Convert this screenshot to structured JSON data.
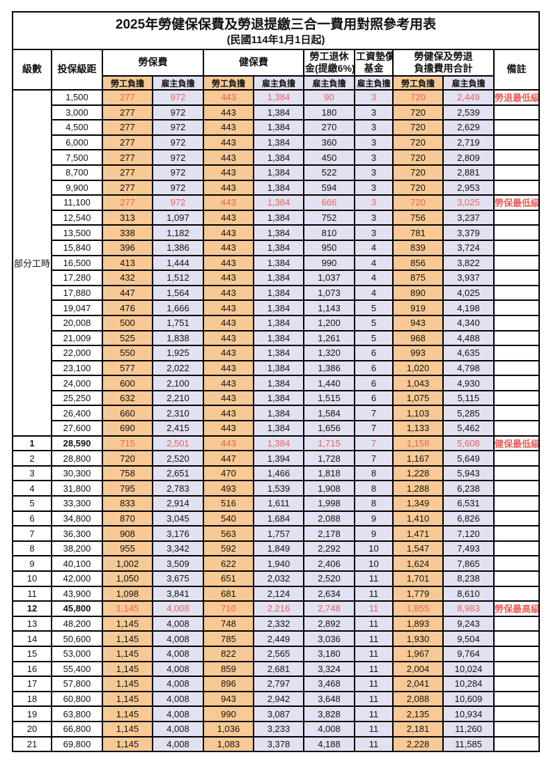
{
  "title": "2025年勞健保保費及勞退提繳三合一費用對照參考用表",
  "subtitle": "(民國114年1月1日起)",
  "colors": {
    "employee_bg": "#f8c995",
    "employer_bg": "#e2e1f1",
    "highlight_text": "#e9605a"
  },
  "table": {
    "headers": {
      "level": "級數",
      "bracket": "投保級距",
      "labor_ins": "勞保費",
      "health_ins": "健保費",
      "pension_line1": "勞工退休",
      "pension_line2": "金(提繳6%)",
      "fund_line1": "工資墊償",
      "fund_line2": "基金",
      "total_line1": "勞健保及勞退",
      "total_line2": "負擔費用合計",
      "remark": "備註",
      "employee": "勞工負擔",
      "employer": "雇主負擔"
    },
    "part_time_label": "部分工時",
    "part_time_rowspan": 23,
    "rows": [
      {
        "level": "",
        "bracket": "1,500",
        "li_emp": "277",
        "li_er": "972",
        "hi_emp": "443",
        "hi_er": "1,384",
        "pension": "90",
        "fund": "3",
        "tot_emp": "720",
        "tot_er": "2,449",
        "remark": "勞退最低級距",
        "hl": true,
        "big": false
      },
      {
        "level": "",
        "bracket": "3,000",
        "li_emp": "277",
        "li_er": "972",
        "hi_emp": "443",
        "hi_er": "1,384",
        "pension": "180",
        "fund": "3",
        "tot_emp": "720",
        "tot_er": "2,539",
        "remark": "",
        "hl": false,
        "big": false
      },
      {
        "level": "",
        "bracket": "4,500",
        "li_emp": "277",
        "li_er": "972",
        "hi_emp": "443",
        "hi_er": "1,384",
        "pension": "270",
        "fund": "3",
        "tot_emp": "720",
        "tot_er": "2,629",
        "remark": "",
        "hl": false,
        "big": false
      },
      {
        "level": "",
        "bracket": "6,000",
        "li_emp": "277",
        "li_er": "972",
        "hi_emp": "443",
        "hi_er": "1,384",
        "pension": "360",
        "fund": "3",
        "tot_emp": "720",
        "tot_er": "2,719",
        "remark": "",
        "hl": false,
        "big": false
      },
      {
        "level": "",
        "bracket": "7,500",
        "li_emp": "277",
        "li_er": "972",
        "hi_emp": "443",
        "hi_er": "1,384",
        "pension": "450",
        "fund": "3",
        "tot_emp": "720",
        "tot_er": "2,809",
        "remark": "",
        "hl": false,
        "big": false
      },
      {
        "level": "",
        "bracket": "8,700",
        "li_emp": "277",
        "li_er": "972",
        "hi_emp": "443",
        "hi_er": "1,384",
        "pension": "522",
        "fund": "3",
        "tot_emp": "720",
        "tot_er": "2,881",
        "remark": "",
        "hl": false,
        "big": false
      },
      {
        "level": "",
        "bracket": "9,900",
        "li_emp": "277",
        "li_er": "972",
        "hi_emp": "443",
        "hi_er": "1,384",
        "pension": "594",
        "fund": "3",
        "tot_emp": "720",
        "tot_er": "2,953",
        "remark": "",
        "hl": false,
        "big": false
      },
      {
        "level": "",
        "bracket": "11,100",
        "li_emp": "277",
        "li_er": "972",
        "hi_emp": "443",
        "hi_er": "1,384",
        "pension": "666",
        "fund": "3",
        "tot_emp": "720",
        "tot_er": "3,025",
        "remark": "勞保最低級距",
        "hl": true,
        "big": false
      },
      {
        "level": "",
        "bracket": "12,540",
        "li_emp": "313",
        "li_er": "1,097",
        "hi_emp": "443",
        "hi_er": "1,384",
        "pension": "752",
        "fund": "3",
        "tot_emp": "756",
        "tot_er": "3,237",
        "remark": "",
        "hl": false,
        "big": false
      },
      {
        "level": "",
        "bracket": "13,500",
        "li_emp": "338",
        "li_er": "1,182",
        "hi_emp": "443",
        "hi_er": "1,384",
        "pension": "810",
        "fund": "3",
        "tot_emp": "781",
        "tot_er": "3,379",
        "remark": "",
        "hl": false,
        "big": false
      },
      {
        "level": "",
        "bracket": "15,840",
        "li_emp": "396",
        "li_er": "1,386",
        "hi_emp": "443",
        "hi_er": "1,384",
        "pension": "950",
        "fund": "4",
        "tot_emp": "839",
        "tot_er": "3,724",
        "remark": "",
        "hl": false,
        "big": false
      },
      {
        "level": "",
        "bracket": "16,500",
        "li_emp": "413",
        "li_er": "1,444",
        "hi_emp": "443",
        "hi_er": "1,384",
        "pension": "990",
        "fund": "4",
        "tot_emp": "856",
        "tot_er": "3,822",
        "remark": "",
        "hl": false,
        "big": false
      },
      {
        "level": "",
        "bracket": "17,280",
        "li_emp": "432",
        "li_er": "1,512",
        "hi_emp": "443",
        "hi_er": "1,384",
        "pension": "1,037",
        "fund": "4",
        "tot_emp": "875",
        "tot_er": "3,937",
        "remark": "",
        "hl": false,
        "big": false
      },
      {
        "level": "",
        "bracket": "17,880",
        "li_emp": "447",
        "li_er": "1,564",
        "hi_emp": "443",
        "hi_er": "1,384",
        "pension": "1,073",
        "fund": "4",
        "tot_emp": "890",
        "tot_er": "4,025",
        "remark": "",
        "hl": false,
        "big": false
      },
      {
        "level": "",
        "bracket": "19,047",
        "li_emp": "476",
        "li_er": "1,666",
        "hi_emp": "443",
        "hi_er": "1,384",
        "pension": "1,143",
        "fund": "5",
        "tot_emp": "919",
        "tot_er": "4,198",
        "remark": "",
        "hl": false,
        "big": false
      },
      {
        "level": "",
        "bracket": "20,008",
        "li_emp": "500",
        "li_er": "1,751",
        "hi_emp": "443",
        "hi_er": "1,384",
        "pension": "1,200",
        "fund": "5",
        "tot_emp": "943",
        "tot_er": "4,340",
        "remark": "",
        "hl": false,
        "big": false
      },
      {
        "level": "",
        "bracket": "21,009",
        "li_emp": "525",
        "li_er": "1,838",
        "hi_emp": "443",
        "hi_er": "1,384",
        "pension": "1,261",
        "fund": "5",
        "tot_emp": "968",
        "tot_er": "4,488",
        "remark": "",
        "hl": false,
        "big": false
      },
      {
        "level": "",
        "bracket": "22,000",
        "li_emp": "550",
        "li_er": "1,925",
        "hi_emp": "443",
        "hi_er": "1,384",
        "pension": "1,320",
        "fund": "6",
        "tot_emp": "993",
        "tot_er": "4,635",
        "remark": "",
        "hl": false,
        "big": false
      },
      {
        "level": "",
        "bracket": "23,100",
        "li_emp": "577",
        "li_er": "2,022",
        "hi_emp": "443",
        "hi_er": "1,384",
        "pension": "1,386",
        "fund": "6",
        "tot_emp": "1,020",
        "tot_er": "4,798",
        "remark": "",
        "hl": false,
        "big": false
      },
      {
        "level": "",
        "bracket": "24,000",
        "li_emp": "600",
        "li_er": "2,100",
        "hi_emp": "443",
        "hi_er": "1,384",
        "pension": "1,440",
        "fund": "6",
        "tot_emp": "1,043",
        "tot_er": "4,930",
        "remark": "",
        "hl": false,
        "big": false
      },
      {
        "level": "",
        "bracket": "25,250",
        "li_emp": "632",
        "li_er": "2,210",
        "hi_emp": "443",
        "hi_er": "1,384",
        "pension": "1,515",
        "fund": "6",
        "tot_emp": "1,075",
        "tot_er": "5,115",
        "remark": "",
        "hl": false,
        "big": false
      },
      {
        "level": "",
        "bracket": "26,400",
        "li_emp": "660",
        "li_er": "2,310",
        "hi_emp": "443",
        "hi_er": "1,384",
        "pension": "1,584",
        "fund": "7",
        "tot_emp": "1,103",
        "tot_er": "5,285",
        "remark": "",
        "hl": false,
        "big": false
      },
      {
        "level": "",
        "bracket": "27,600",
        "li_emp": "690",
        "li_er": "2,415",
        "hi_emp": "443",
        "hi_er": "1,384",
        "pension": "1,656",
        "fund": "7",
        "tot_emp": "1,133",
        "tot_er": "5,462",
        "remark": "",
        "hl": false,
        "big": false
      },
      {
        "level": "1",
        "bracket": "28,590",
        "li_emp": "715",
        "li_er": "2,501",
        "hi_emp": "443",
        "hi_er": "1,384",
        "pension": "1,715",
        "fund": "7",
        "tot_emp": "1,158",
        "tot_er": "5,608",
        "remark": "健保最低級距",
        "hl": true,
        "big": true
      },
      {
        "level": "2",
        "bracket": "28,800",
        "li_emp": "720",
        "li_er": "2,520",
        "hi_emp": "447",
        "hi_er": "1,394",
        "pension": "1,728",
        "fund": "7",
        "tot_emp": "1,167",
        "tot_er": "5,649",
        "remark": "",
        "hl": false,
        "big": false
      },
      {
        "level": "3",
        "bracket": "30,300",
        "li_emp": "758",
        "li_er": "2,651",
        "hi_emp": "470",
        "hi_er": "1,466",
        "pension": "1,818",
        "fund": "8",
        "tot_emp": "1,228",
        "tot_er": "5,943",
        "remark": "",
        "hl": false,
        "big": false
      },
      {
        "level": "4",
        "bracket": "31,800",
        "li_emp": "795",
        "li_er": "2,783",
        "hi_emp": "493",
        "hi_er": "1,539",
        "pension": "1,908",
        "fund": "8",
        "tot_emp": "1,288",
        "tot_er": "6,238",
        "remark": "",
        "hl": false,
        "big": false
      },
      {
        "level": "5",
        "bracket": "33,300",
        "li_emp": "833",
        "li_er": "2,914",
        "hi_emp": "516",
        "hi_er": "1,611",
        "pension": "1,998",
        "fund": "8",
        "tot_emp": "1,349",
        "tot_er": "6,531",
        "remark": "",
        "hl": false,
        "big": false
      },
      {
        "level": "6",
        "bracket": "34,800",
        "li_emp": "870",
        "li_er": "3,045",
        "hi_emp": "540",
        "hi_er": "1,684",
        "pension": "2,088",
        "fund": "9",
        "tot_emp": "1,410",
        "tot_er": "6,826",
        "remark": "",
        "hl": false,
        "big": false
      },
      {
        "level": "7",
        "bracket": "36,300",
        "li_emp": "908",
        "li_er": "3,176",
        "hi_emp": "563",
        "hi_er": "1,757",
        "pension": "2,178",
        "fund": "9",
        "tot_emp": "1,471",
        "tot_er": "7,120",
        "remark": "",
        "hl": false,
        "big": false
      },
      {
        "level": "8",
        "bracket": "38,200",
        "li_emp": "955",
        "li_er": "3,342",
        "hi_emp": "592",
        "hi_er": "1,849",
        "pension": "2,292",
        "fund": "10",
        "tot_emp": "1,547",
        "tot_er": "7,493",
        "remark": "",
        "hl": false,
        "big": false
      },
      {
        "level": "9",
        "bracket": "40,100",
        "li_emp": "1,002",
        "li_er": "3,509",
        "hi_emp": "622",
        "hi_er": "1,940",
        "pension": "2,406",
        "fund": "10",
        "tot_emp": "1,624",
        "tot_er": "7,865",
        "remark": "",
        "hl": false,
        "big": false
      },
      {
        "level": "10",
        "bracket": "42,000",
        "li_emp": "1,050",
        "li_er": "3,675",
        "hi_emp": "651",
        "hi_er": "2,032",
        "pension": "2,520",
        "fund": "11",
        "tot_emp": "1,701",
        "tot_er": "8,238",
        "remark": "",
        "hl": false,
        "big": false
      },
      {
        "level": "11",
        "bracket": "43,900",
        "li_emp": "1,098",
        "li_er": "3,841",
        "hi_emp": "681",
        "hi_er": "2,124",
        "pension": "2,634",
        "fund": "11",
        "tot_emp": "1,779",
        "tot_er": "8,610",
        "remark": "",
        "hl": false,
        "big": false
      },
      {
        "level": "12",
        "bracket": "45,800",
        "li_emp": "1,145",
        "li_er": "4,008",
        "hi_emp": "710",
        "hi_er": "2,216",
        "pension": "2,748",
        "fund": "11",
        "tot_emp": "1,855",
        "tot_er": "8,983",
        "remark": "勞保最高級距",
        "hl": true,
        "big": true
      },
      {
        "level": "13",
        "bracket": "48,200",
        "li_emp": "1,145",
        "li_er": "4,008",
        "hi_emp": "748",
        "hi_er": "2,332",
        "pension": "2,892",
        "fund": "11",
        "tot_emp": "1,893",
        "tot_er": "9,243",
        "remark": "",
        "hl": false,
        "big": false
      },
      {
        "level": "14",
        "bracket": "50,600",
        "li_emp": "1,145",
        "li_er": "4,008",
        "hi_emp": "785",
        "hi_er": "2,449",
        "pension": "3,036",
        "fund": "11",
        "tot_emp": "1,930",
        "tot_er": "9,504",
        "remark": "",
        "hl": false,
        "big": false
      },
      {
        "level": "15",
        "bracket": "53,000",
        "li_emp": "1,145",
        "li_er": "4,008",
        "hi_emp": "822",
        "hi_er": "2,565",
        "pension": "3,180",
        "fund": "11",
        "tot_emp": "1,967",
        "tot_er": "9,764",
        "remark": "",
        "hl": false,
        "big": false
      },
      {
        "level": "16",
        "bracket": "55,400",
        "li_emp": "1,145",
        "li_er": "4,008",
        "hi_emp": "859",
        "hi_er": "2,681",
        "pension": "3,324",
        "fund": "11",
        "tot_emp": "2,004",
        "tot_er": "10,024",
        "remark": "",
        "hl": false,
        "big": false
      },
      {
        "level": "17",
        "bracket": "57,800",
        "li_emp": "1,145",
        "li_er": "4,008",
        "hi_emp": "896",
        "hi_er": "2,797",
        "pension": "3,468",
        "fund": "11",
        "tot_emp": "2,041",
        "tot_er": "10,284",
        "remark": "",
        "hl": false,
        "big": false
      },
      {
        "level": "18",
        "bracket": "60,800",
        "li_emp": "1,145",
        "li_er": "4,008",
        "hi_emp": "943",
        "hi_er": "2,942",
        "pension": "3,648",
        "fund": "11",
        "tot_emp": "2,088",
        "tot_er": "10,609",
        "remark": "",
        "hl": false,
        "big": false
      },
      {
        "level": "19",
        "bracket": "63,800",
        "li_emp": "1,145",
        "li_er": "4,008",
        "hi_emp": "990",
        "hi_er": "3,087",
        "pension": "3,828",
        "fund": "11",
        "tot_emp": "2,135",
        "tot_er": "10,934",
        "remark": "",
        "hl": false,
        "big": false
      },
      {
        "level": "20",
        "bracket": "66,800",
        "li_emp": "1,145",
        "li_er": "4,008",
        "hi_emp": "1,036",
        "hi_er": "3,233",
        "pension": "4,008",
        "fund": "11",
        "tot_emp": "2,181",
        "tot_er": "11,260",
        "remark": "",
        "hl": false,
        "big": false
      },
      {
        "level": "21",
        "bracket": "69,800",
        "li_emp": "1,145",
        "li_er": "4,008",
        "hi_emp": "1,083",
        "hi_er": "3,378",
        "pension": "4,188",
        "fund": "11",
        "tot_emp": "2,228",
        "tot_er": "11,585",
        "remark": "",
        "hl": false,
        "big": false
      }
    ]
  }
}
